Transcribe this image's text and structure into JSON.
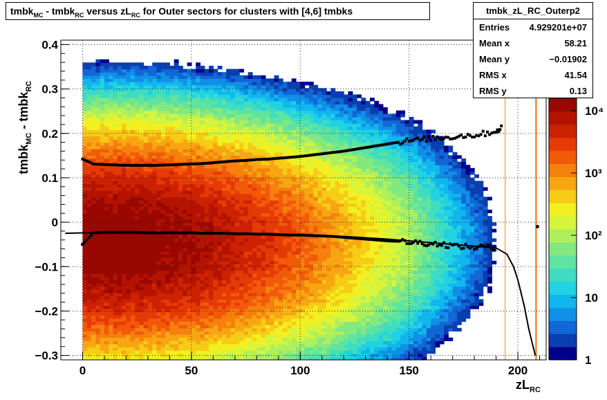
{
  "title": {
    "part1": "tmbk",
    "sub1": "MC",
    "part2": " - tmbk",
    "sub2": "RC",
    "part3": " versus zL",
    "sub3": "RC",
    "part4": " for Outer sectors for clusters with [4,6] tmbks"
  },
  "stats": {
    "name": "tmbk_zL_RC_Outerp2",
    "rows": [
      {
        "key": "Entries",
        "value": "4.929201e+07"
      },
      {
        "key": "Mean x",
        "value": "58.21"
      },
      {
        "key": "Mean y",
        "value": "−0.01902"
      },
      {
        "key": "RMS x",
        "value": "41.54"
      },
      {
        "key": "RMS y",
        "value": "0.13"
      }
    ]
  },
  "axes": {
    "ylabel_main": "tmbk",
    "ylabel_sub1": "MC",
    "ylabel_mid": " - tmbk",
    "ylabel_sub2": "RC",
    "xlabel_main": "zL",
    "xlabel_sub": "RC"
  },
  "chart_data": {
    "type": "heatmap",
    "xlim": [
      -10,
      213
    ],
    "ylim": [
      -0.31,
      0.41
    ],
    "x_ticks": [
      "0",
      "50",
      "100",
      "150",
      "200"
    ],
    "x_tick_values": [
      0,
      50,
      100,
      150,
      200
    ],
    "y_ticks": [
      "−0.3",
      "−0.2",
      "−0.1",
      "0",
      "0.1",
      "0.2",
      "0.3",
      "0.4"
    ],
    "y_tick_values": [
      -0.3,
      -0.2,
      -0.1,
      0,
      0.1,
      0.2,
      0.3,
      0.4
    ],
    "z_log": true,
    "z_ticks": [
      "1",
      "10",
      "10²",
      "10³",
      "10⁴"
    ],
    "z_tick_values": [
      1,
      10,
      100,
      1000,
      10000
    ],
    "grid": true,
    "colors": [
      "#00008b",
      "#0a3fb0",
      "#1266d6",
      "#0f90e6",
      "#12b6ef",
      "#21d2e2",
      "#3fdcc2",
      "#5ee3a0",
      "#84e880",
      "#aef05b",
      "#d4f43e",
      "#f2f020",
      "#f6cc16",
      "#f7a612",
      "#f5800d",
      "#f25a09",
      "#e63a06",
      "#cc2203",
      "#b51301",
      "#990800"
    ],
    "upper_profile": {
      "x": [
        0,
        5,
        10,
        15,
        20,
        25,
        30,
        35,
        40,
        45,
        50,
        55,
        60,
        65,
        70,
        75,
        80,
        85,
        90,
        95,
        100,
        105,
        110,
        115,
        120,
        125,
        130,
        135,
        140,
        145,
        150,
        155,
        160,
        165,
        170,
        175,
        180,
        185,
        190,
        193
      ],
      "y": [
        0.142,
        0.131,
        0.13,
        0.129,
        0.128,
        0.128,
        0.128,
        0.128,
        0.129,
        0.13,
        0.131,
        0.132,
        0.134,
        0.136,
        0.138,
        0.139,
        0.141,
        0.142,
        0.144,
        0.146,
        0.148,
        0.151,
        0.154,
        0.157,
        0.16,
        0.164,
        0.168,
        0.172,
        0.176,
        0.18,
        0.184,
        0.185,
        0.189,
        0.19,
        0.192,
        0.195,
        0.196,
        0.2,
        0.205,
        0.215
      ]
    },
    "lower_profile": {
      "x": [
        0,
        5,
        10,
        15,
        20,
        25,
        30,
        35,
        40,
        45,
        50,
        55,
        60,
        65,
        70,
        75,
        80,
        85,
        90,
        95,
        100,
        105,
        110,
        115,
        120,
        125,
        130,
        135,
        140,
        145,
        150,
        155,
        160,
        165,
        170,
        175,
        180,
        185,
        190,
        209
      ],
      "y": [
        -0.05,
        -0.024,
        -0.023,
        -0.023,
        -0.023,
        -0.023,
        -0.024,
        -0.024,
        -0.024,
        -0.024,
        -0.024,
        -0.025,
        -0.025,
        -0.025,
        -0.026,
        -0.026,
        -0.027,
        -0.027,
        -0.028,
        -0.029,
        -0.029,
        -0.03,
        -0.031,
        -0.032,
        -0.034,
        -0.036,
        -0.038,
        -0.04,
        -0.042,
        -0.043,
        -0.045,
        -0.046,
        -0.048,
        -0.05,
        -0.053,
        -0.055,
        -0.057,
        -0.054,
        -0.062,
        -0.01
      ]
    },
    "fit_curve": {
      "x": [
        -8,
        0,
        20,
        40,
        60,
        80,
        100,
        120,
        140,
        160,
        180,
        190,
        195,
        198,
        200,
        203,
        205,
        207,
        208
      ],
      "y": [
        -0.025,
        -0.024,
        -0.024,
        -0.024,
        -0.025,
        -0.026,
        -0.028,
        -0.032,
        -0.038,
        -0.046,
        -0.054,
        -0.058,
        -0.072,
        -0.1,
        -0.13,
        -0.19,
        -0.24,
        -0.28,
        -0.3
      ]
    }
  }
}
